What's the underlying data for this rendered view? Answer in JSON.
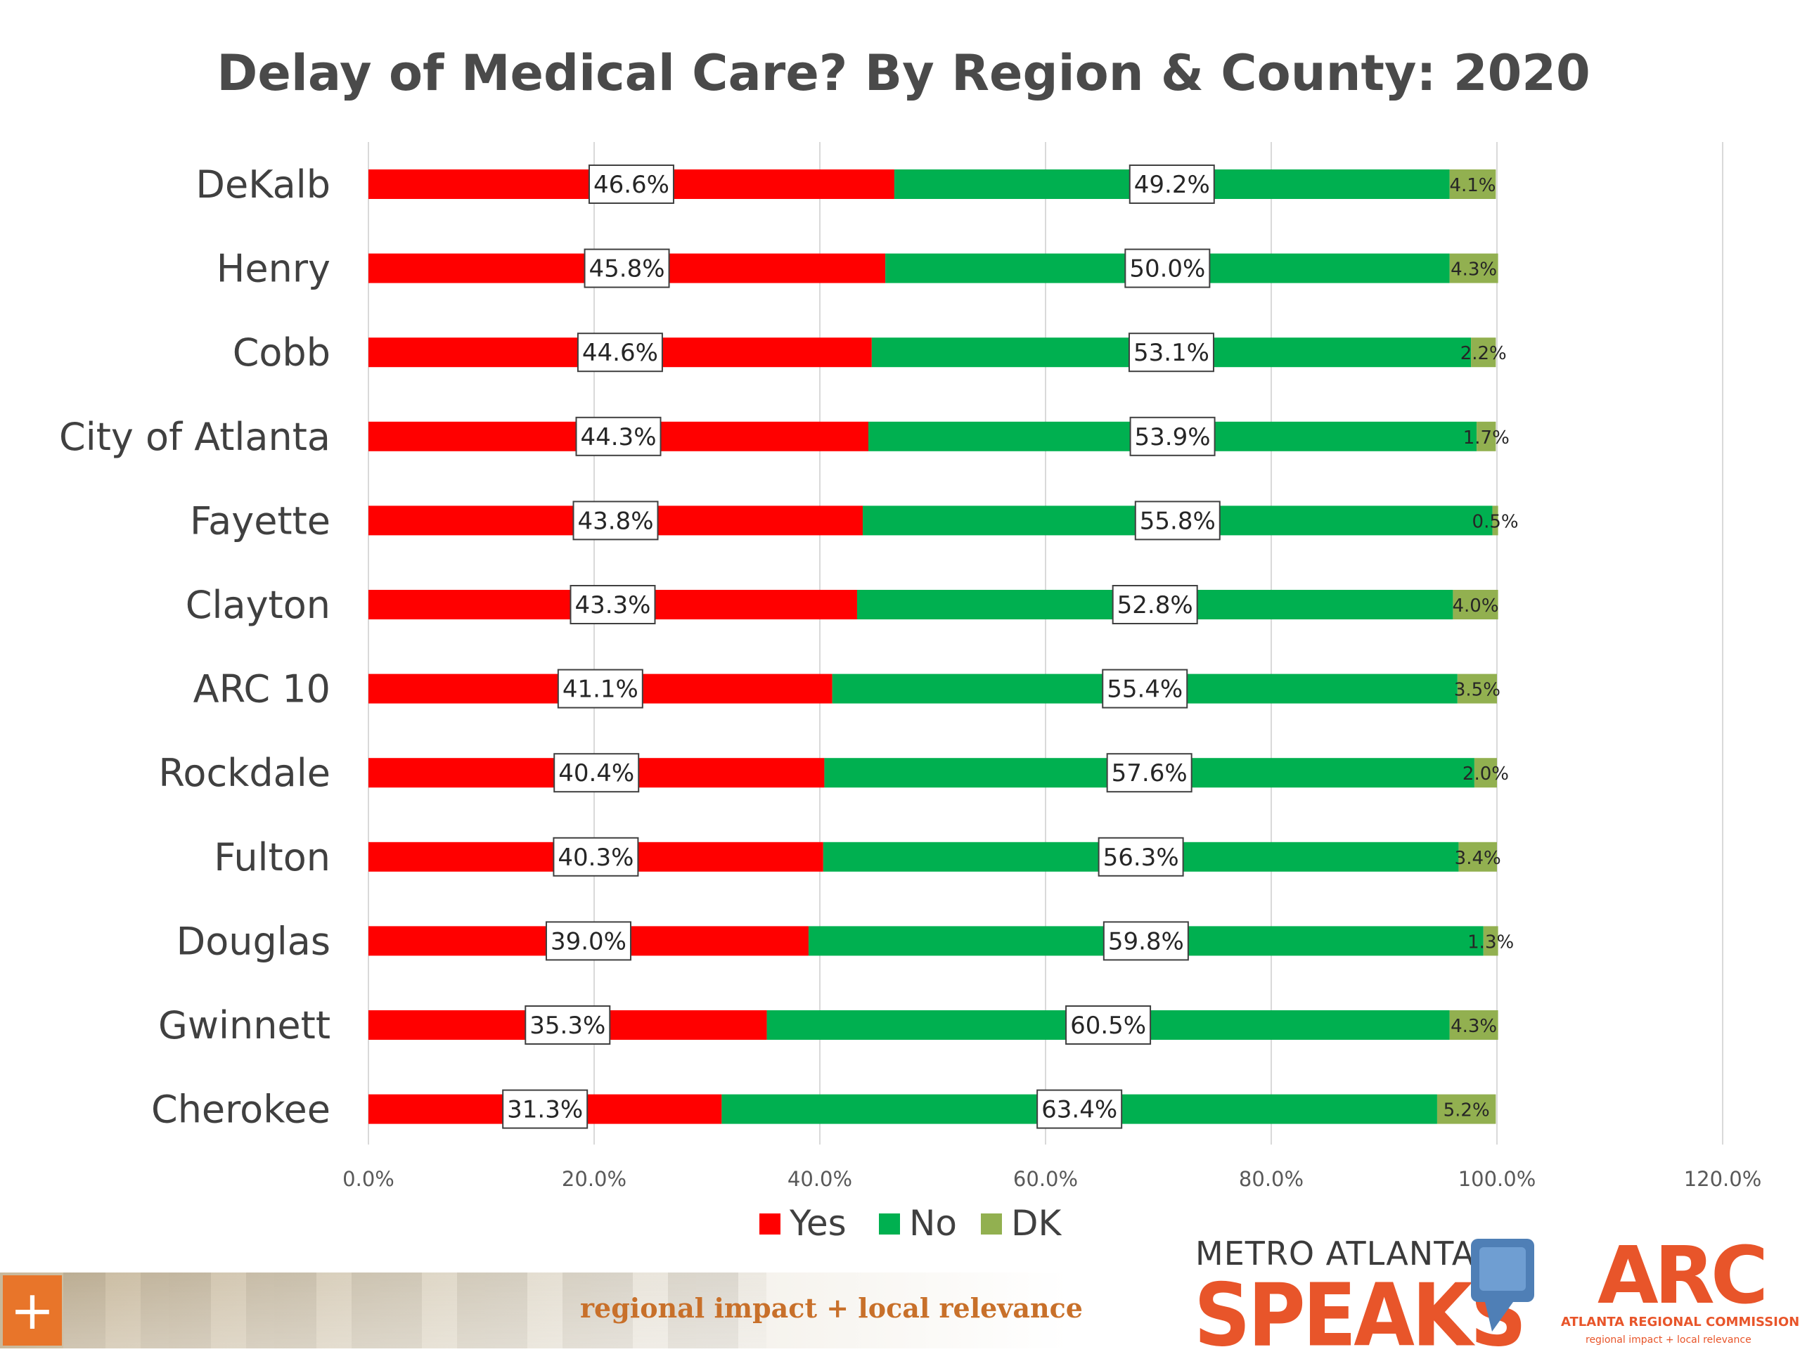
{
  "chart_data": {
    "type": "bar",
    "orientation": "horizontal",
    "stacked": true,
    "title": "Delay of Medical Care? By Region & County: 2020",
    "categories": [
      "DeKalb",
      "Henry",
      "Cobb",
      "City of Atlanta",
      "Fayette",
      "Clayton",
      "ARC 10",
      "Rockdale",
      "Fulton",
      "Douglas",
      "Gwinnett",
      "Cherokee"
    ],
    "series": [
      {
        "name": "Yes",
        "color": "#ff0000",
        "values": [
          46.6,
          45.8,
          44.6,
          44.3,
          43.8,
          43.3,
          41.1,
          40.4,
          40.3,
          39.0,
          35.3,
          31.3
        ]
      },
      {
        "name": "No",
        "color": "#00b050",
        "values": [
          49.2,
          50.0,
          53.1,
          53.9,
          55.8,
          52.8,
          55.4,
          57.6,
          56.3,
          59.8,
          60.5,
          63.4
        ]
      },
      {
        "name": "DK",
        "color": "#92b050",
        "values": [
          4.1,
          4.3,
          2.2,
          1.7,
          0.5,
          4.0,
          3.5,
          2.0,
          3.4,
          1.3,
          4.3,
          5.2
        ]
      }
    ],
    "x_ticks": [
      "0.0%",
      "20.0%",
      "40.0%",
      "60.0%",
      "80.0%",
      "100.0%",
      "120.0%"
    ],
    "xlim": [
      0,
      120
    ],
    "grid": true,
    "legend": "bottom",
    "data_labels": true
  },
  "footer": {
    "plus_label": "+",
    "tagline": "regional impact + local relevance",
    "brand_top": "METRO ATLANTA",
    "brand_bottom": "SPEAKS",
    "arc_logo": "ARC",
    "arc_name": "ATLANTA REGIONAL COMMISSION",
    "arc_tagline": "regional impact + local relevance"
  }
}
